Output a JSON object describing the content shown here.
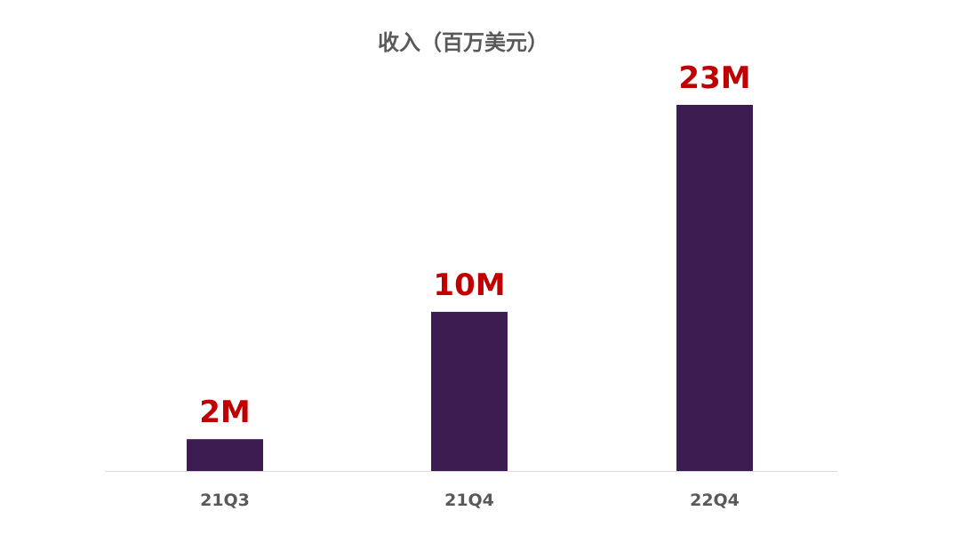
{
  "chart_data": {
    "type": "bar",
    "title": "收入（百万美元）",
    "categories": [
      "21Q3",
      "21Q4",
      "22Q4"
    ],
    "values": [
      2,
      10,
      23
    ],
    "value_labels": [
      "2M",
      "10M",
      "23M"
    ],
    "ylim": [
      0,
      23
    ],
    "grid": false,
    "legend": "none",
    "colors": {
      "bar": "#3d1c52",
      "value_label": "#c00000",
      "axis_line": "#d9d9d9",
      "text": "#595959"
    }
  }
}
